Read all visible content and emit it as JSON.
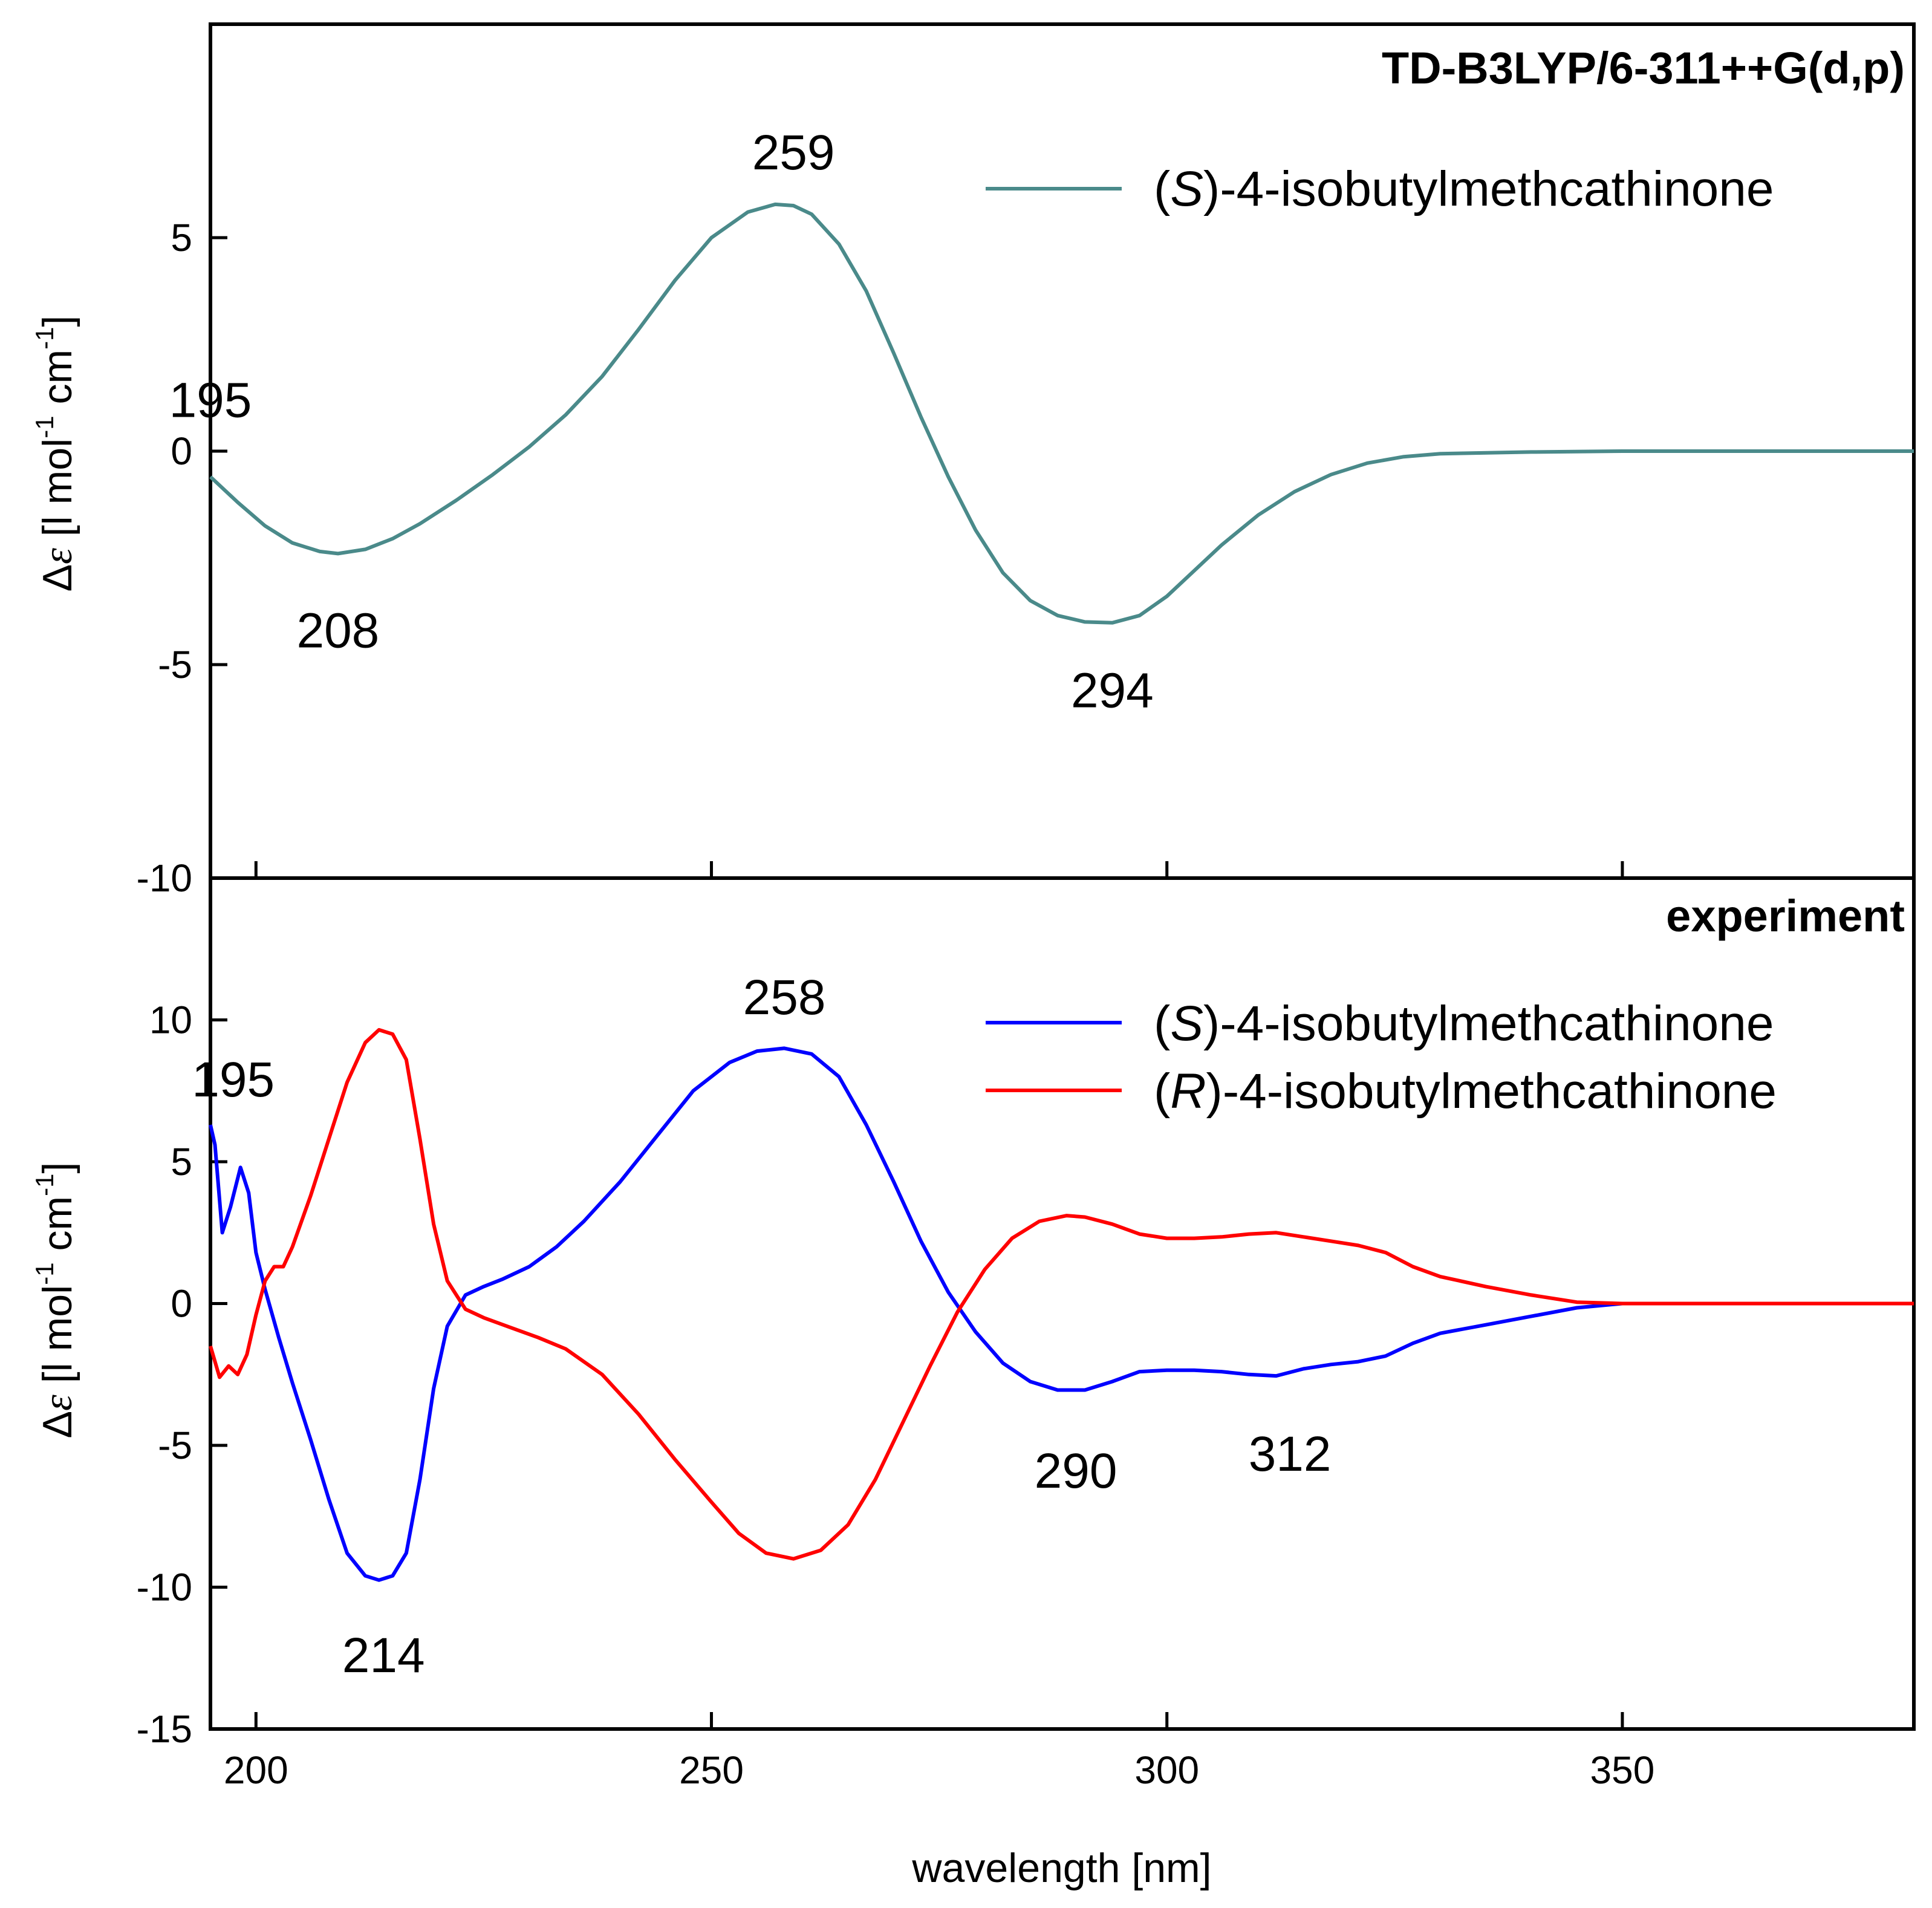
{
  "chart_data": [
    {
      "type": "line",
      "panel": "top",
      "title": "TD-B3LYP/6-311++G(d,p)",
      "xlabel": "",
      "ylabel": "Δε [l mol⁻¹ cm⁻¹]",
      "ylabel_parts": {
        "delta": "Δ",
        "epsilon": "ε",
        "a": " [l mol",
        "sup1": "-1",
        "b": " cm",
        "sup2": "-1",
        "c": "]"
      },
      "xlim": [
        195,
        382
      ],
      "ylim": [
        -10,
        10
      ],
      "y_ticks": [
        -10,
        -5,
        0,
        5
      ],
      "y_tick_labels": [
        "-10",
        "-5",
        "0",
        "5"
      ],
      "x_ticks": [
        200,
        250,
        300,
        350
      ],
      "legend_placement": "top-right",
      "series": [
        {
          "name": "(S)-4-isobutylmethcathinone",
          "name_parts": {
            "pre": "(",
            "ital": "S",
            "post": ")-4-isobutylmethcathinone"
          },
          "color": "#4a8a8a",
          "x": [
            195,
            198,
            201,
            204,
            207,
            209,
            212,
            215,
            218,
            222,
            226,
            230,
            234,
            238,
            242,
            246,
            250,
            254,
            257,
            259,
            261,
            264,
            267,
            270,
            273,
            276,
            279,
            282,
            285,
            288,
            291,
            294,
            297,
            300,
            303,
            306,
            310,
            314,
            318,
            322,
            326,
            330,
            340,
            350,
            360,
            370,
            382
          ],
          "values": [
            -0.6,
            -1.2,
            -1.75,
            -2.15,
            -2.35,
            -2.4,
            -2.3,
            -2.05,
            -1.7,
            -1.15,
            -0.55,
            0.1,
            0.85,
            1.75,
            2.85,
            4.0,
            5.0,
            5.6,
            5.78,
            5.75,
            5.55,
            4.85,
            3.75,
            2.3,
            0.8,
            -0.6,
            -1.85,
            -2.85,
            -3.5,
            -3.85,
            -4.0,
            -4.02,
            -3.85,
            -3.4,
            -2.8,
            -2.2,
            -1.5,
            -0.95,
            -0.55,
            -0.28,
            -0.13,
            -0.06,
            -0.02,
            0,
            0,
            0,
            0
          ]
        }
      ],
      "annotations": [
        {
          "text": "195",
          "x": 195,
          "y": 1.2
        },
        {
          "text": "208",
          "x": 209,
          "y": -4.2
        },
        {
          "text": "259",
          "x": 259,
          "y": 7.0
        },
        {
          "text": "294",
          "x": 294,
          "y": -5.6
        }
      ]
    },
    {
      "type": "line",
      "panel": "bottom",
      "title": "experiment",
      "xlabel": "wavelength [nm]",
      "ylabel": "Δε [l mol⁻¹ cm⁻¹]",
      "ylabel_parts": {
        "delta": "Δ",
        "epsilon": "ε",
        "a": " [l mol",
        "sup1": "-1",
        "b": " cm",
        "sup2": "-1",
        "c": "]"
      },
      "xlim": [
        195,
        382
      ],
      "ylim": [
        -15,
        15
      ],
      "y_ticks": [
        -15,
        -10,
        -5,
        0,
        5,
        10
      ],
      "y_tick_labels": [
        "-15",
        "-10",
        "-5",
        "0",
        "5",
        "10"
      ],
      "x_ticks": [
        200,
        250,
        300,
        350
      ],
      "x_tick_labels": [
        "200",
        "250",
        "300",
        "350"
      ],
      "legend_placement": "top-right",
      "series": [
        {
          "name": "(S)-4-isobutylmethcathinone",
          "name_parts": {
            "pre": "(",
            "ital": "S",
            "post": ")-4-isobutylmethcathinone"
          },
          "color": "#0000ff",
          "x": [
            195,
            195.5,
            196.3,
            197.2,
            198.3,
            199.2,
            200,
            201,
            202.5,
            204,
            206,
            208,
            210,
            212,
            213.5,
            215,
            216.5,
            218,
            219.5,
            221,
            223,
            225,
            227,
            230,
            233,
            236,
            240,
            244,
            248,
            252,
            255,
            258,
            261,
            264,
            267,
            270,
            273,
            276,
            279,
            282,
            285,
            288,
            291,
            294,
            297,
            300,
            303,
            306,
            309,
            312,
            315,
            318,
            321,
            324,
            327,
            330,
            335,
            340,
            345,
            350,
            360,
            370,
            382
          ],
          "values": [
            6.3,
            5.6,
            2.5,
            3.4,
            4.8,
            3.9,
            1.8,
            0.5,
            -1.2,
            -2.8,
            -4.8,
            -6.9,
            -8.8,
            -9.6,
            -9.75,
            -9.6,
            -8.8,
            -6.2,
            -3.0,
            -0.8,
            0.3,
            0.6,
            0.85,
            1.3,
            2.0,
            2.9,
            4.3,
            5.9,
            7.5,
            8.5,
            8.9,
            9.0,
            8.8,
            8.0,
            6.3,
            4.3,
            2.2,
            0.4,
            -1.0,
            -2.1,
            -2.75,
            -3.05,
            -3.05,
            -2.75,
            -2.4,
            -2.35,
            -2.35,
            -2.4,
            -2.5,
            -2.55,
            -2.3,
            -2.15,
            -2.05,
            -1.85,
            -1.4,
            -1.05,
            -0.75,
            -0.45,
            -0.15,
            0,
            0,
            0,
            0
          ]
        },
        {
          "name": "(R)-4-isobutylmethcathinone",
          "name_parts": {
            "pre": "(",
            "ital": "R",
            "post": ")-4-isobutylmethcathinone"
          },
          "color": "#ff0000",
          "x": [
            195,
            196,
            197,
            198,
            199,
            200,
            201,
            202,
            203,
            204,
            206,
            208,
            210,
            212,
            213.5,
            215,
            216.5,
            218,
            219.5,
            221,
            223,
            225,
            228,
            231,
            234,
            238,
            242,
            246,
            250,
            253,
            256,
            259,
            262,
            265,
            268,
            271,
            274,
            277,
            280,
            283,
            286,
            289,
            291,
            294,
            297,
            300,
            303,
            306,
            309,
            312,
            315,
            318,
            321,
            324,
            327,
            330,
            335,
            340,
            345,
            350,
            360,
            370,
            382
          ],
          "values": [
            -1.5,
            -2.6,
            -2.2,
            -2.5,
            -1.8,
            -0.4,
            0.8,
            1.3,
            1.3,
            2.0,
            3.8,
            5.8,
            7.8,
            9.2,
            9.65,
            9.5,
            8.6,
            5.8,
            2.8,
            0.8,
            -0.2,
            -0.5,
            -0.85,
            -1.2,
            -1.6,
            -2.5,
            -3.9,
            -5.5,
            -7.0,
            -8.1,
            -8.8,
            -9.0,
            -8.7,
            -7.8,
            -6.2,
            -4.2,
            -2.2,
            -0.3,
            1.2,
            2.3,
            2.9,
            3.1,
            3.05,
            2.8,
            2.45,
            2.3,
            2.3,
            2.35,
            2.45,
            2.5,
            2.35,
            2.2,
            2.05,
            1.8,
            1.3,
            0.95,
            0.6,
            0.3,
            0.05,
            0,
            0,
            0,
            0
          ]
        }
      ],
      "annotations": [
        {
          "text": "195",
          "x": 197.5,
          "y": 7.9
        },
        {
          "text": "214",
          "x": 214,
          "y": -12.4
        },
        {
          "text": "258",
          "x": 258,
          "y": 10.8
        },
        {
          "text": "290",
          "x": 290,
          "y": -5.9
        },
        {
          "text": "312",
          "x": 313.5,
          "y": -5.3
        }
      ]
    }
  ]
}
